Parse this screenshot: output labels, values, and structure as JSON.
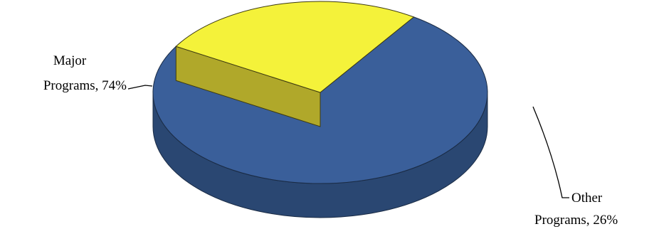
{
  "chart_data": {
    "type": "pie",
    "style": "3d-exploded",
    "slices": [
      {
        "name": "Major Programs",
        "value": 74,
        "label_lines": [
          "Major",
          "Programs, 74%"
        ],
        "color": "#3A5F9A",
        "side_color": "#2A4772"
      },
      {
        "name": "Other Programs",
        "value": 26,
        "label_lines": [
          "Other",
          "Programs, 26%"
        ],
        "color": "#F4F23A",
        "side_color": "#B0A82A"
      }
    ],
    "legend": "none",
    "data_labels": "outside-with-leaders"
  }
}
